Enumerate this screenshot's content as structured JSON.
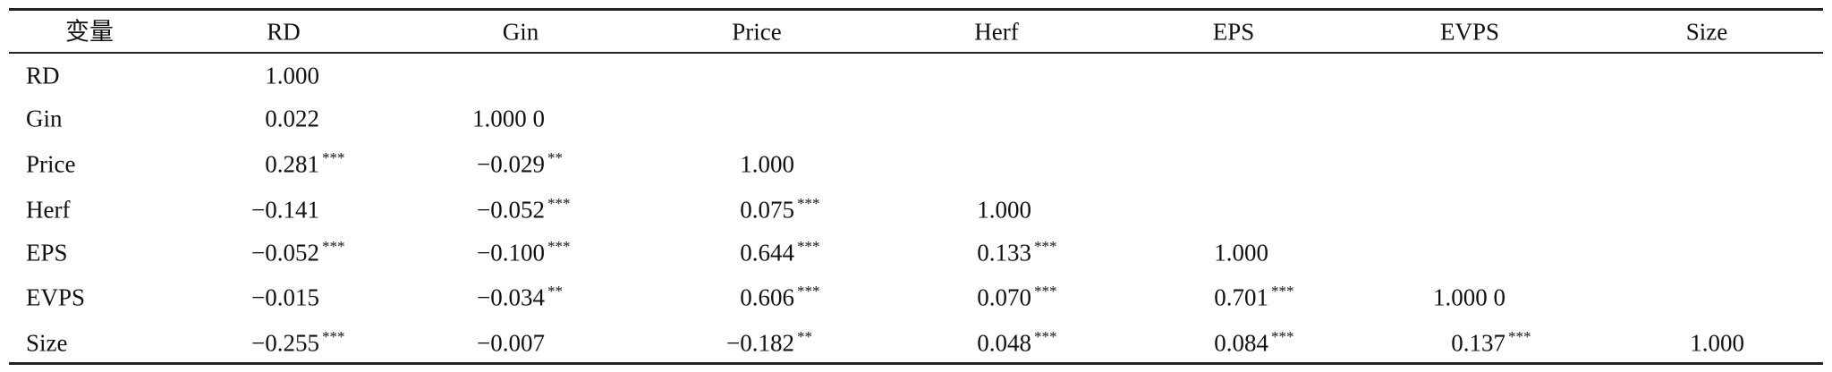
{
  "table": {
    "header": [
      "变量",
      "RD",
      "Gin",
      "Price",
      "Herf",
      "EPS",
      "EVPS",
      "Size"
    ],
    "rows": [
      {
        "label": "RD",
        "cells": [
          {
            "value": "1.000"
          }
        ]
      },
      {
        "label": "Gin",
        "cells": [
          {
            "value": "0.022"
          },
          {
            "value": "1.000 0"
          }
        ]
      },
      {
        "label": "Price",
        "cells": [
          {
            "value": "0.281",
            "stars": "***"
          },
          {
            "value": "−0.029",
            "stars": "**"
          },
          {
            "value": "1.000"
          }
        ]
      },
      {
        "label": "Herf",
        "cells": [
          {
            "value": "−0.141"
          },
          {
            "value": "−0.052",
            "stars": "***"
          },
          {
            "value": "0.075",
            "stars": "***"
          },
          {
            "value": "1.000"
          }
        ]
      },
      {
        "label": "EPS",
        "cells": [
          {
            "value": "−0.052",
            "stars": "***"
          },
          {
            "value": "−0.100",
            "stars": "***"
          },
          {
            "value": "0.644",
            "stars": "***"
          },
          {
            "value": "0.133",
            "stars": "***"
          },
          {
            "value": "1.000"
          }
        ]
      },
      {
        "label": "EVPS",
        "cells": [
          {
            "value": "−0.015"
          },
          {
            "value": "−0.034",
            "stars": "**"
          },
          {
            "value": "0.606",
            "stars": "***"
          },
          {
            "value": "0.070",
            "stars": "***"
          },
          {
            "value": "0.701",
            "stars": "***"
          },
          {
            "value": "1.000 0"
          }
        ]
      },
      {
        "label": "Size",
        "cells": [
          {
            "value": "−0.255",
            "stars": "***"
          },
          {
            "value": "−0.007"
          },
          {
            "value": "−0.182",
            "stars": "**"
          },
          {
            "value": "0.048",
            "stars": "***"
          },
          {
            "value": "0.084",
            "stars": "***"
          },
          {
            "value": "0.137",
            "stars": "***"
          },
          {
            "value": "1.000"
          }
        ]
      }
    ]
  }
}
